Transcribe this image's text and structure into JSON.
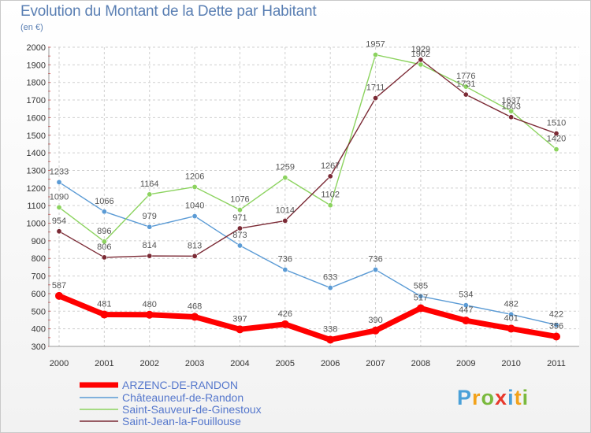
{
  "chart_data": {
    "type": "line",
    "title": "Evolution du Montant de la Dette par Habitant",
    "subtitle": "(en €)",
    "x": [
      "2000",
      "2001",
      "2002",
      "2003",
      "2004",
      "2005",
      "2006",
      "2007",
      "2008",
      "2009",
      "2010",
      "2011"
    ],
    "yticks": [
      "300",
      "400",
      "500",
      "600",
      "700",
      "800",
      "900",
      "1000",
      "1100",
      "1200",
      "1300",
      "1400",
      "1500",
      "1600",
      "1700",
      "1800",
      "1900",
      "2000"
    ],
    "ylim": [
      300,
      2000
    ],
    "grid": true,
    "legend_position": "bottom-left",
    "series": [
      {
        "name": "ARZENC-DE-RANDON",
        "color": "#ff0000",
        "width": 7,
        "values": [
          587,
          481,
          480,
          468,
          397,
          426,
          338,
          390,
          517,
          447,
          401,
          356
        ],
        "labels": [
          "587",
          "481",
          "480",
          "468",
          "397",
          "426",
          "338",
          "390",
          "517",
          "447",
          "401",
          "356"
        ]
      },
      {
        "name": "Châteauneuf-de-Randon",
        "color": "#5b9bd5",
        "width": 1.4,
        "values": [
          1233,
          1066,
          979,
          1040,
          873,
          736,
          633,
          736,
          585,
          534,
          482,
          422
        ],
        "labels": [
          "1233",
          "1066",
          "979",
          "1040",
          "873",
          "736",
          "633",
          "736",
          "585",
          "534",
          "482",
          "422"
        ]
      },
      {
        "name": "Saint-Sauveur-de-Ginestoux",
        "color": "#8cd35f",
        "width": 1.4,
        "values": [
          1090,
          896,
          1164,
          1206,
          1076,
          1259,
          1102,
          1957,
          1902,
          1776,
          1637,
          1420
        ],
        "labels": [
          "1090",
          "896",
          "1164",
          "1206",
          "1076",
          "1259",
          "1102",
          "1957",
          "1902",
          "1776",
          "1637",
          "1420"
        ]
      },
      {
        "name": "Saint-Jean-la-Fouillouse",
        "color": "#7b2a35",
        "width": 1.4,
        "values": [
          954,
          806,
          814,
          813,
          971,
          1014,
          1267,
          1711,
          1929,
          1731,
          1603,
          1510
        ],
        "labels": [
          "954",
          "806",
          "814",
          "813",
          "971",
          "1014",
          "1267",
          "1711",
          "1929",
          "1731",
          "1603",
          "1510"
        ]
      }
    ]
  },
  "branding": {
    "logo_letters": [
      "P",
      "r",
      "o",
      "x",
      "i",
      "t",
      "i"
    ]
  }
}
